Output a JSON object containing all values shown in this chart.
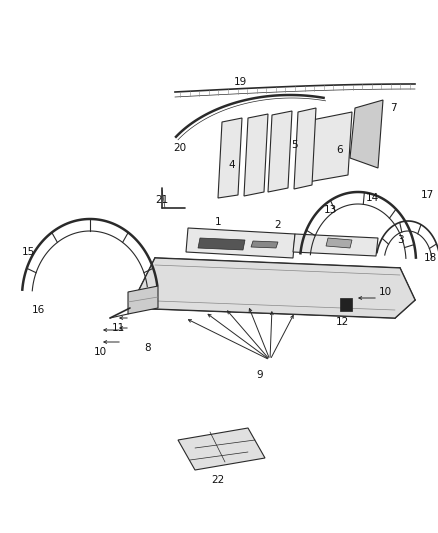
{
  "background_color": "#ffffff",
  "fig_width": 4.38,
  "fig_height": 5.33,
  "dpi": 100,
  "color_dark": "#2a2a2a",
  "color_mid": "#666666",
  "color_light": "#aaaaaa",
  "color_fill_light": "#e8e8e8",
  "color_fill_mid": "#cccccc",
  "color_fill_dark": "#444444",
  "color_black": "#111111"
}
